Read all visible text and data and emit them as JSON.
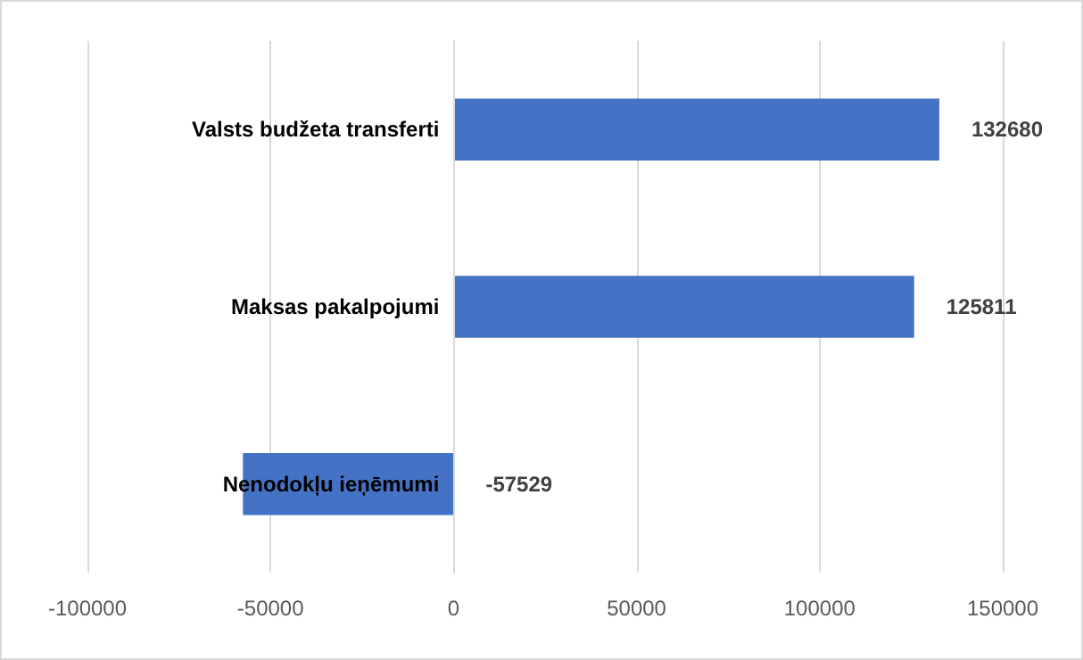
{
  "chart_data": {
    "type": "bar",
    "orientation": "horizontal",
    "categories": [
      "Valsts budžeta transferti",
      "Maksas pakalpojumi",
      "Nenodokļu ieņēmumi"
    ],
    "values": [
      132680,
      125811,
      -57529
    ],
    "color": "#4472c4",
    "xlim": [
      -100000,
      150000
    ],
    "xticks": [
      -100000,
      -50000,
      0,
      50000,
      100000,
      150000
    ],
    "grid": "x",
    "data_labels": true
  }
}
